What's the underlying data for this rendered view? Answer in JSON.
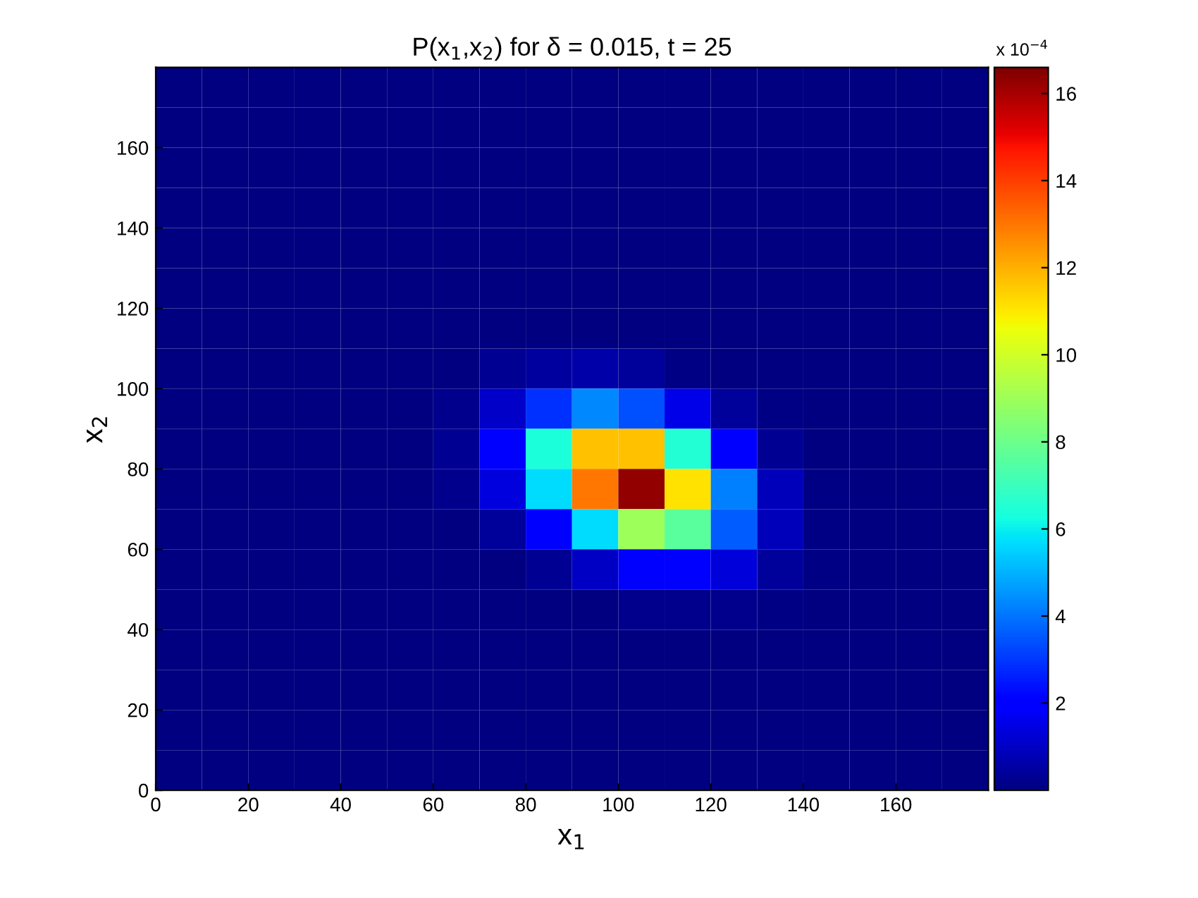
{
  "chart_data": {
    "type": "heatmap",
    "title": "P(x$_{1}$,x$_{2}$) for δ = 0.015, t = 25",
    "xlabel": "x$_{1}$",
    "ylabel": "x$_{2}$",
    "clabel": "x 10$^{−4}$",
    "x": [
      5,
      15,
      25,
      35,
      45,
      55,
      65,
      75,
      85,
      95,
      105,
      115,
      125,
      135,
      145,
      155,
      165,
      175
    ],
    "y": [
      175,
      165,
      155,
      145,
      135,
      125,
      115,
      105,
      95,
      85,
      75,
      65,
      55,
      45,
      35,
      25,
      15,
      5
    ],
    "xlim": [
      0,
      180
    ],
    "ylim": [
      0,
      180
    ],
    "xticks": [
      0,
      20,
      40,
      60,
      80,
      100,
      120,
      140,
      160
    ],
    "yticks": [
      0,
      20,
      40,
      60,
      80,
      100,
      120,
      140,
      160
    ],
    "clim": [
      0,
      16.6
    ],
    "cticks": [
      2,
      4,
      6,
      8,
      10,
      12,
      14,
      16
    ],
    "cells": [
      [
        0,
        0,
        0,
        0,
        0,
        0,
        0,
        0,
        0,
        0,
        0,
        0,
        0,
        0,
        0,
        0,
        0,
        0
      ],
      [
        0,
        0,
        0,
        0,
        0,
        0,
        0,
        0,
        0,
        0,
        0,
        0,
        0,
        0,
        0,
        0,
        0,
        0
      ],
      [
        0,
        0,
        0,
        0,
        0,
        0,
        0,
        0,
        0,
        0,
        0,
        0,
        0,
        0,
        0,
        0,
        0,
        0
      ],
      [
        0,
        0,
        0,
        0,
        0,
        0,
        0,
        0,
        0,
        0,
        0,
        0,
        0,
        0,
        0,
        0,
        0,
        0
      ],
      [
        0,
        0,
        0,
        0,
        0,
        0,
        0,
        0,
        0,
        0,
        0,
        0,
        0,
        0,
        0,
        0,
        0,
        0
      ],
      [
        0,
        0,
        0,
        0,
        0,
        0,
        0,
        0,
        0,
        0,
        0,
        0,
        0,
        0,
        0,
        0,
        0,
        0
      ],
      [
        0,
        0,
        0,
        0,
        0,
        0,
        0,
        0,
        0,
        0,
        0,
        0,
        0,
        0,
        0,
        0,
        0,
        0
      ],
      [
        0,
        0,
        0,
        0,
        0,
        0,
        0,
        0.3,
        0.5,
        0.6,
        0.4,
        0.1,
        0,
        0,
        0,
        0,
        0,
        0
      ],
      [
        0,
        0,
        0,
        0,
        0,
        0,
        0.2,
        1.1,
        2.9,
        4.3,
        3.4,
        1.5,
        0.4,
        0.1,
        0,
        0,
        0,
        0
      ],
      [
        0,
        0,
        0,
        0,
        0,
        0,
        0.3,
        1.9,
        6.4,
        11.7,
        11.7,
        6.5,
        1.9,
        0.3,
        0,
        0,
        0,
        0
      ],
      [
        0,
        0,
        0,
        0,
        0,
        0,
        0.2,
        1.4,
        5.7,
        13.0,
        16.3,
        11.1,
        4.2,
        0.9,
        0.1,
        0,
        0,
        0
      ],
      [
        0,
        0,
        0,
        0,
        0,
        0,
        0,
        0.4,
        2.0,
        5.7,
        9.0,
        7.6,
        3.6,
        0.9,
        0.1,
        0,
        0,
        0
      ],
      [
        0,
        0,
        0,
        0,
        0,
        0,
        0,
        0,
        0.3,
        1.0,
        2.0,
        2.1,
        1.3,
        0.4,
        0.1,
        0,
        0,
        0
      ],
      [
        0,
        0,
        0,
        0,
        0,
        0,
        0,
        0,
        0,
        0,
        0.2,
        0.2,
        0.2,
        0.1,
        0,
        0,
        0,
        0
      ],
      [
        0,
        0,
        0,
        0,
        0,
        0,
        0,
        0,
        0,
        0,
        0,
        0,
        0,
        0,
        0,
        0,
        0,
        0
      ],
      [
        0,
        0,
        0,
        0,
        0,
        0,
        0,
        0,
        0,
        0,
        0,
        0,
        0,
        0,
        0,
        0,
        0,
        0
      ],
      [
        0,
        0,
        0,
        0,
        0,
        0,
        0,
        0,
        0,
        0,
        0,
        0,
        0,
        0,
        0,
        0,
        0,
        0
      ],
      [
        0,
        0,
        0,
        0,
        0,
        0,
        0,
        0,
        0,
        0,
        0,
        0,
        0,
        0,
        0,
        0,
        0,
        0
      ]
    ]
  }
}
